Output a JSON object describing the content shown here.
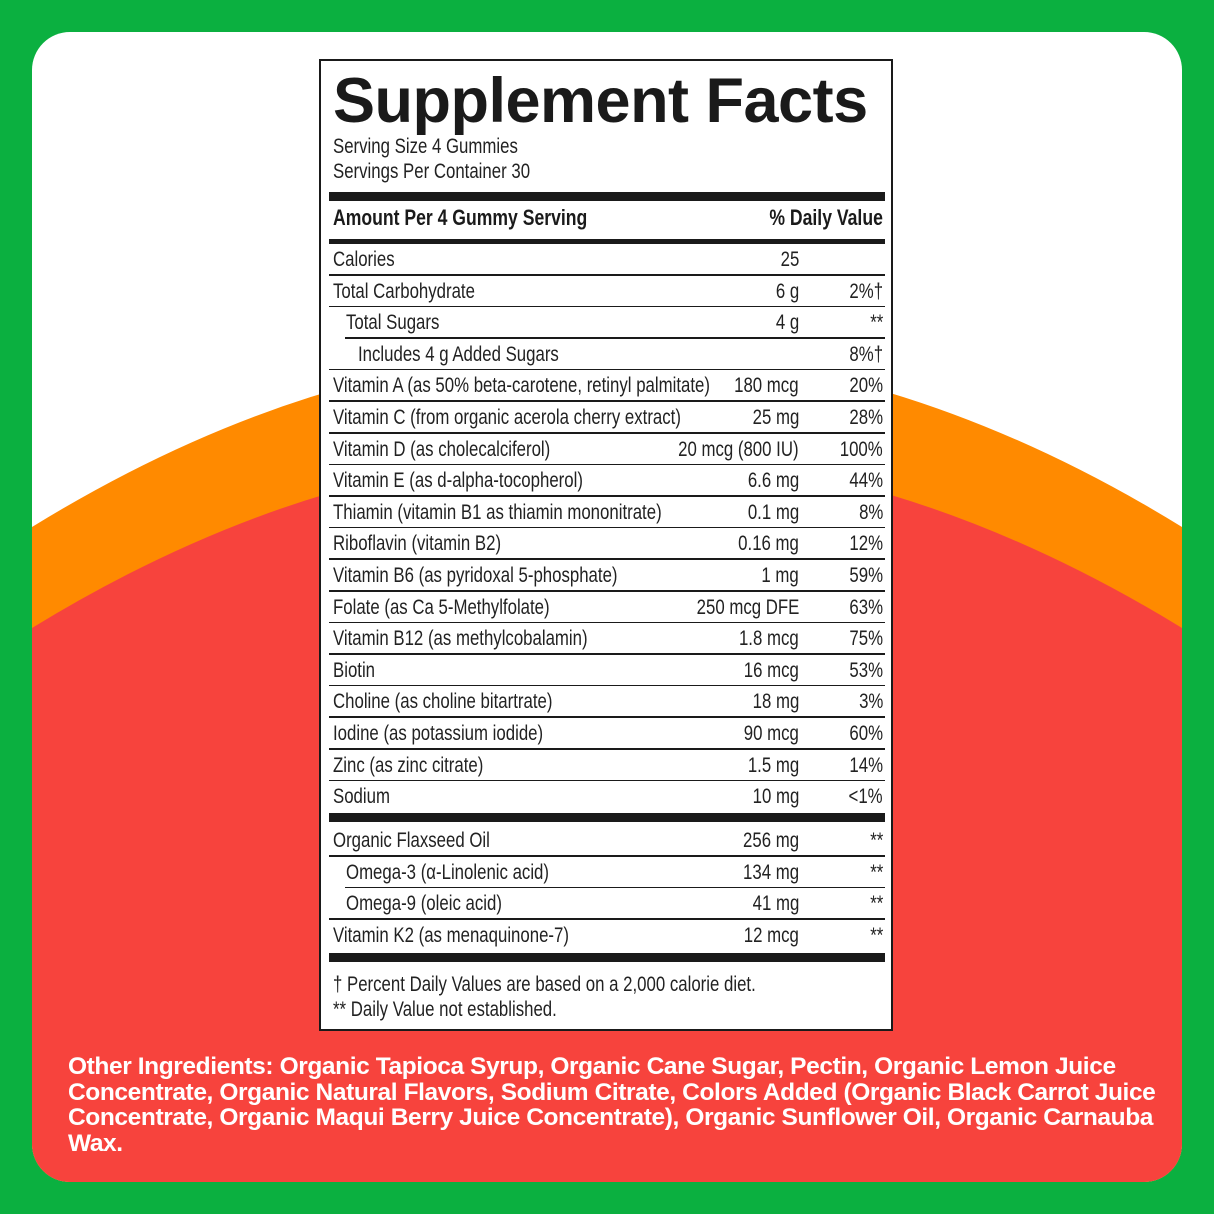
{
  "colors": {
    "frame": "#0bb040",
    "orange": "#ff8a00",
    "red": "#f7433d",
    "card": "#ffffff"
  },
  "label": {
    "title": "Supplement Facts",
    "serving_size": "Serving Size 4 Gummies",
    "servings_per_container": "Servings Per Container 30",
    "header_left": "Amount Per 4 Gummy Serving",
    "header_right": "% Daily Value",
    "rows": [
      {
        "name": "Calories",
        "amount": "25",
        "dv": "",
        "level": 0
      },
      {
        "name": "Total Carbohydrate",
        "amount": "6 g",
        "dv": "2%†",
        "level": 0
      },
      {
        "name": "Total Sugars",
        "amount": "4 g",
        "dv": "**",
        "level": 1
      },
      {
        "name": "Includes 4 g Added Sugars",
        "amount": "",
        "dv": "8%†",
        "level": 2
      },
      {
        "name": "Vitamin A (as 50% beta-carotene, retinyl palmitate)",
        "amount": "180 mcg",
        "dv": "20%",
        "level": 0
      },
      {
        "name": "Vitamin C (from organic acerola cherry extract)",
        "amount": "25 mg",
        "dv": "28%",
        "level": 0
      },
      {
        "name": "Vitamin D (as cholecalciferol)",
        "amount": "20 mcg (800 IU)",
        "dv": "100%",
        "level": 0
      },
      {
        "name": "Vitamin E (as d-alpha-tocopherol)",
        "amount": "6.6 mg",
        "dv": "44%",
        "level": 0
      },
      {
        "name": "Thiamin (vitamin B1 as thiamin mononitrate)",
        "amount": "0.1 mg",
        "dv": "8%",
        "level": 0
      },
      {
        "name": "Riboflavin (vitamin B2)",
        "amount": "0.16 mg",
        "dv": "12%",
        "level": 0
      },
      {
        "name": "Vitamin B6 (as pyridoxal 5-phosphate)",
        "amount": "1 mg",
        "dv": "59%",
        "level": 0
      },
      {
        "name": "Folate (as Ca 5-Methylfolate)",
        "amount": "250 mcg DFE",
        "dv": "63%",
        "level": 0
      },
      {
        "name": "Vitamin B12 (as methylcobalamin)",
        "amount": "1.8 mcg",
        "dv": "75%",
        "level": 0
      },
      {
        "name": "Biotin",
        "amount": "16 mcg",
        "dv": "53%",
        "level": 0
      },
      {
        "name": "Choline (as choline bitartrate)",
        "amount": "18 mg",
        "dv": "3%",
        "level": 0
      },
      {
        "name": "Iodine (as potassium iodide)",
        "amount": "90 mcg",
        "dv": "60%",
        "level": 0
      },
      {
        "name": "Zinc (as zinc citrate)",
        "amount": "1.5 mg",
        "dv": "14%",
        "level": 0
      },
      {
        "name": "Sodium",
        "amount": "10 mg",
        "dv": "<1%",
        "level": 0
      }
    ],
    "rows2": [
      {
        "name": "Organic Flaxseed Oil",
        "amount": "256 mg",
        "dv": "**",
        "level": 0
      },
      {
        "name": "Omega-3 (α-Linolenic acid)",
        "amount": "134 mg",
        "dv": "**",
        "level": 1
      },
      {
        "name": "Omega-9 (oleic acid)",
        "amount": "41 mg",
        "dv": "**",
        "level": 1
      },
      {
        "name": "Vitamin K2 (as menaquinone-7)",
        "amount": "12 mcg",
        "dv": "**",
        "level": 0
      }
    ],
    "footnote_1": "† Percent Daily Values are based on a 2,000 calorie diet.",
    "footnote_2": "** Daily Value not established."
  },
  "other_ingredients": {
    "heading": "Other Ingredients:",
    "text": "Organic Tapioca Syrup, Organic Cane Sugar, Pectin, Organic Lemon Juice Concentrate, Organic Natural Flavors, Sodium Citrate, Colors Added (Organic Black Carrot Juice Concentrate, Organic Maqui Berry Juice Concentrate), Organic Sunflower Oil, Organic Carnauba Wax."
  }
}
